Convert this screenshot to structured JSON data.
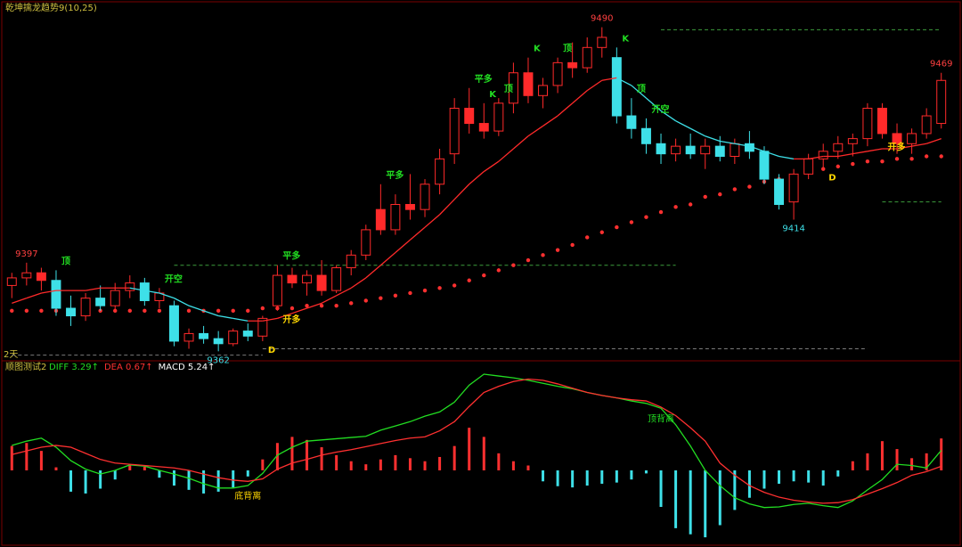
{
  "chart_data": [
    {
      "type": "candlestick",
      "title": "乾坤擒龙趋势9(10,25)",
      "period_label": "2天",
      "ylim": [
        9360,
        9499
      ],
      "up_color": "#ff2a2a",
      "down_color": "#3ee0e8",
      "open": [
        9388,
        9391,
        9393,
        9390,
        9379,
        9376,
        9383,
        9380,
        9386,
        9389,
        9382,
        9380,
        9366,
        9369,
        9367,
        9365,
        9370,
        9368,
        9380,
        9392,
        9389,
        9392,
        9386,
        9395,
        9400,
        9418,
        9410,
        9420,
        9418,
        9428,
        9440,
        9458,
        9452,
        9449,
        9460,
        9472,
        9463,
        9467,
        9476,
        9474,
        9482,
        9478,
        9455,
        9450,
        9444,
        9440,
        9443,
        9440,
        9443,
        9439,
        9444,
        9441,
        9430,
        9421,
        9432,
        9438,
        9441,
        9444,
        9446,
        9458,
        9448,
        9444,
        9448,
        9452
      ],
      "high": [
        9393,
        9397,
        9395,
        9394,
        9384,
        9385,
        9388,
        9389,
        9392,
        9391,
        9387,
        9382,
        9371,
        9372,
        9370,
        9371,
        9373,
        9376,
        9396,
        9395,
        9394,
        9398,
        9396,
        9402,
        9412,
        9428,
        9424,
        9432,
        9430,
        9442,
        9462,
        9466,
        9460,
        9462,
        9476,
        9478,
        9470,
        9478,
        9484,
        9486,
        9490,
        9482,
        9462,
        9454,
        9448,
        9446,
        9448,
        9446,
        9447,
        9446,
        9449,
        9443,
        9432,
        9434,
        9440,
        9444,
        9447,
        9448,
        9460,
        9460,
        9452,
        9450,
        9458,
        9472
      ],
      "low": [
        9383,
        9388,
        9386,
        9376,
        9372,
        9374,
        9378,
        9378,
        9383,
        9380,
        9379,
        9364,
        9363,
        9365,
        9362,
        9364,
        9366,
        9366,
        9378,
        9387,
        9384,
        9384,
        9385,
        9392,
        9398,
        9408,
        9408,
        9414,
        9415,
        9424,
        9436,
        9448,
        9446,
        9447,
        9456,
        9460,
        9458,
        9464,
        9470,
        9472,
        9478,
        9452,
        9446,
        9440,
        9436,
        9437,
        9438,
        9434,
        9437,
        9436,
        9438,
        9428,
        9418,
        9414,
        9430,
        9434,
        9438,
        9439,
        9443,
        9446,
        9440,
        9440,
        9446,
        9450
      ],
      "close": [
        9391,
        9393,
        9390,
        9379,
        9376,
        9383,
        9380,
        9386,
        9389,
        9382,
        9385,
        9366,
        9369,
        9367,
        9365,
        9370,
        9368,
        9375,
        9392,
        9389,
        9392,
        9386,
        9395,
        9400,
        9410,
        9410,
        9420,
        9418,
        9428,
        9438,
        9458,
        9452,
        9449,
        9460,
        9472,
        9463,
        9467,
        9476,
        9474,
        9482,
        9486,
        9455,
        9450,
        9444,
        9440,
        9443,
        9440,
        9443,
        9439,
        9444,
        9441,
        9430,
        9420,
        9432,
        9438,
        9441,
        9444,
        9446,
        9458,
        9448,
        9444,
        9448,
        9455,
        9469
      ],
      "fast_line": [
        9381,
        9383,
        9385,
        9386,
        9386,
        9386,
        9387,
        9387,
        9387,
        9386,
        9385,
        9383,
        9380,
        9378,
        9376,
        9375,
        9374,
        9374,
        9375,
        9377,
        9379,
        9381,
        9384,
        9387,
        9391,
        9396,
        9401,
        9406,
        9411,
        9416,
        9422,
        9428,
        9433,
        9437,
        9442,
        9447,
        9451,
        9455,
        9460,
        9465,
        9469,
        9470,
        9467,
        9462,
        9457,
        9453,
        9450,
        9447,
        9445,
        9444,
        9443,
        9441,
        9439,
        9438,
        9438,
        9439,
        9439,
        9440,
        9441,
        9442,
        9442,
        9443,
        9444,
        9446
      ],
      "slow_line": [
        9378,
        9378,
        9378,
        9378,
        9378,
        9378,
        9378,
        9378,
        9378,
        9378,
        9378,
        9378,
        9378,
        9378,
        9378,
        9378,
        9378,
        9379,
        9379,
        9379,
        9380,
        9380,
        9380,
        9381,
        9382,
        9383,
        9384,
        9385,
        9386,
        9387,
        9388,
        9390,
        9392,
        9394,
        9396,
        9398,
        9400,
        9402,
        9404,
        9407,
        9409,
        9411,
        9413,
        9415,
        9417,
        9419,
        9420,
        9423,
        9424,
        9426,
        9427,
        9429,
        9430,
        9431,
        9433,
        9434,
        9435,
        9436,
        9437,
        9437,
        9438,
        9438,
        9439,
        9439
      ],
      "slow_color": "#ff3030",
      "levels": [
        {
          "value": 9396,
          "from": 11,
          "to": 45,
          "color": "#3c9c3c"
        },
        {
          "value": 9489,
          "from": 44,
          "to": 63,
          "color": "#3c9c3c"
        },
        {
          "value": 9421,
          "from": 59,
          "to": 63,
          "color": "#3c9c3c"
        },
        {
          "value": 9363,
          "from": 17,
          "to": 58,
          "color": "#7a7a7a"
        },
        {
          "value": 9360.5,
          "from": 0,
          "to": 17,
          "color": "#7a7a7a"
        }
      ],
      "price_labels": [
        {
          "value": 9490,
          "index": 40,
          "side": "high",
          "color": "#ff4040"
        },
        {
          "value": 9469,
          "index": 63,
          "side": "high",
          "color": "#ff4040"
        },
        {
          "value": 9397,
          "index": 1,
          "side": "high",
          "color": "#ff4040"
        },
        {
          "value": 9414,
          "index": 53,
          "side": "low",
          "color": "#3ee0e8"
        },
        {
          "value": 9362,
          "index": 14,
          "side": "low",
          "color": "#3ee0e8"
        }
      ],
      "annotations": [
        {
          "text": "顶",
          "index": 3,
          "side": "high",
          "color": "#22dd22"
        },
        {
          "text": "开空",
          "index": 10,
          "side": "high",
          "color": "#22dd22"
        },
        {
          "text": "D",
          "index": 17,
          "side": "low",
          "color": "#ffd700"
        },
        {
          "text": "开多",
          "index": 18,
          "side": "low",
          "color": "#ffd700"
        },
        {
          "text": "平多",
          "index": 18,
          "side": "high",
          "color": "#22dd22"
        },
        {
          "text": "平多",
          "index": 25,
          "side": "high",
          "color": "#22dd22"
        },
        {
          "text": "平多",
          "index": 31,
          "side": "high",
          "color": "#22dd22"
        },
        {
          "text": "K",
          "index": 32,
          "side": "high",
          "color": "#22dd22"
        },
        {
          "text": "顶",
          "index": 33,
          "side": "high",
          "color": "#22dd22"
        },
        {
          "text": "K",
          "index": 35,
          "side": "high",
          "color": "#22dd22"
        },
        {
          "text": "顶",
          "index": 37,
          "side": "high",
          "color": "#22dd22"
        },
        {
          "text": "K",
          "index": 41,
          "side": "high",
          "color": "#22dd22"
        },
        {
          "text": "顶",
          "index": 42,
          "side": "high",
          "color": "#22dd22"
        },
        {
          "text": "开空",
          "index": 43,
          "side": "high",
          "color": "#22dd22"
        },
        {
          "text": "D",
          "index": 55,
          "side": "low",
          "color": "#ffd700"
        },
        {
          "text": "开多",
          "index": 59,
          "side": "low",
          "color": "#ffd700"
        }
      ]
    },
    {
      "type": "macd",
      "title": "顺图测试2",
      "header": [
        {
          "text": "DIFF 3.29↑",
          "color": "#22dd22"
        },
        {
          "text": "DEA 0.67↑",
          "color": "#ff3030"
        },
        {
          "text": "MACD 5.24↑",
          "color": "#ffffff"
        }
      ],
      "ylim": [
        -12,
        15.8
      ],
      "histogram": [
        4.0,
        4.5,
        3.2,
        0.5,
        -3.5,
        -3.8,
        -3.0,
        -1.5,
        0.8,
        0.6,
        -1.2,
        -2.5,
        -3.2,
        -3.8,
        -3.5,
        -2.8,
        -1.0,
        1.8,
        4.5,
        5.5,
        5.0,
        3.8,
        2.5,
        1.5,
        1.0,
        1.8,
        2.5,
        2.0,
        1.5,
        2.2,
        4.0,
        7.0,
        5.5,
        2.8,
        1.5,
        0.8,
        -1.8,
        -2.6,
        -2.8,
        -2.5,
        -2.2,
        -2.0,
        -1.5,
        -0.5,
        -6.0,
        -9.5,
        -10.5,
        -11.0,
        -9.0,
        -6.5,
        -4.5,
        -3.0,
        -2.2,
        -1.8,
        -2.0,
        -2.5,
        -1.0,
        1.5,
        2.8,
        4.8,
        3.5,
        2.0,
        2.8,
        5.24
      ],
      "series": [
        {
          "name": "DIFF",
          "color": "#22dd22",
          "values": [
            4.1,
            4.8,
            5.3,
            3.8,
            1.6,
            0.2,
            -0.6,
            0.0,
            0.9,
            0.7,
            0.0,
            -0.6,
            -1.3,
            -2.2,
            -2.9,
            -2.9,
            -2.5,
            -0.5,
            2.5,
            3.8,
            4.8,
            5.0,
            5.2,
            5.4,
            5.6,
            6.6,
            7.3,
            8.0,
            8.9,
            9.6,
            11.2,
            14.0,
            15.8,
            15.5,
            15.2,
            14.8,
            14.3,
            13.8,
            13.4,
            12.8,
            12.3,
            11.9,
            11.4,
            11.0,
            10.2,
            7.5,
            4.0,
            0.0,
            -2.5,
            -4.5,
            -5.5,
            -6.1,
            -6.0,
            -5.6,
            -5.4,
            -5.8,
            -6.1,
            -5.0,
            -3.2,
            -1.5,
            1.0,
            0.8,
            0.4,
            3.29
          ]
        },
        {
          "name": "DEA",
          "color": "#ff3030",
          "values": [
            2.6,
            3.2,
            3.8,
            4.1,
            3.8,
            2.8,
            1.8,
            1.2,
            1.0,
            0.8,
            0.6,
            0.4,
            0.0,
            -0.6,
            -1.2,
            -1.6,
            -1.8,
            -1.4,
            0.2,
            1.2,
            1.8,
            2.5,
            3.0,
            3.4,
            3.9,
            4.4,
            4.9,
            5.3,
            5.5,
            6.5,
            8.0,
            10.5,
            12.8,
            13.8,
            14.6,
            15.0,
            14.8,
            14.2,
            13.5,
            12.8,
            12.3,
            11.9,
            11.6,
            11.4,
            10.4,
            9.0,
            7.0,
            4.8,
            1.2,
            -0.8,
            -2.5,
            -3.6,
            -4.4,
            -4.9,
            -5.2,
            -5.4,
            -5.3,
            -4.8,
            -3.9,
            -3.0,
            -2.0,
            -0.8,
            -0.2,
            0.67
          ]
        }
      ],
      "annotations": [
        {
          "text": "底背离",
          "index": 16,
          "color": "#ffd700"
        },
        {
          "text": "顶背离",
          "index": 44,
          "color": "#22dd22"
        }
      ]
    }
  ]
}
